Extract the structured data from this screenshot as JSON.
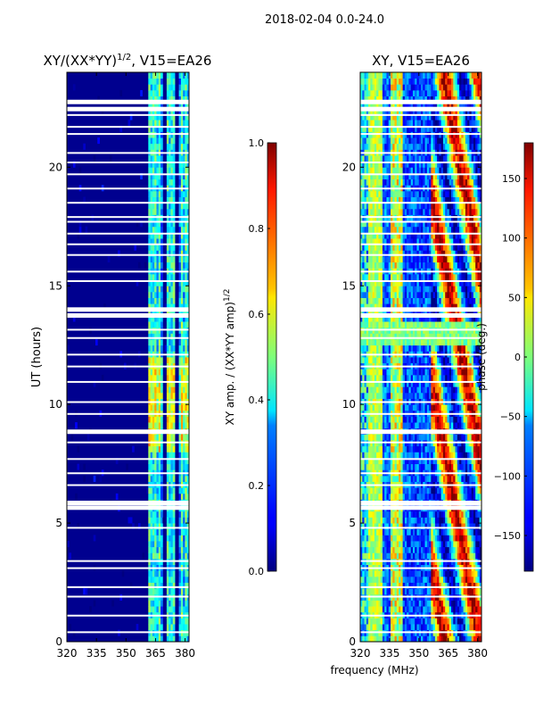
{
  "suptitle": "2018-02-04 0.0-24.0",
  "chart_data": [
    {
      "type": "heatmap",
      "title_main": "XY/(XX*YY)",
      "title_sup": "1/2",
      "title_tail": ", V15=EA26",
      "ylabel": "UT (hours)",
      "xlabel": "",
      "xticks": [
        320,
        335,
        350,
        365,
        380
      ],
      "yticks": [
        0,
        5,
        10,
        15,
        20
      ],
      "xlim": [
        320,
        382
      ],
      "ylim": [
        0,
        24
      ],
      "colorscale": "jet",
      "colorbar": {
        "label_main": "XY amp. / (XX*YY amp)",
        "label_sup": "1/2",
        "ticks": [
          "0.0",
          "0.2",
          "0.4",
          "0.6",
          "0.8",
          "1.0"
        ],
        "tick_values": [
          0,
          0.2,
          0.4,
          0.6,
          0.8,
          1.0
        ],
        "range": [
          0,
          1
        ]
      }
    },
    {
      "type": "heatmap",
      "title": "XY, V15=EA26",
      "ylabel": "",
      "xlabel": "frequency (MHz)",
      "xticks": [
        320,
        335,
        350,
        365,
        380
      ],
      "yticks": [
        0,
        5,
        10,
        15,
        20
      ],
      "xlim": [
        320,
        382
      ],
      "ylim": [
        0,
        24
      ],
      "colorscale": "jet",
      "colorbar": {
        "label": "phase (deg.)",
        "ticks": [
          "150",
          "100",
          "50",
          "0",
          "−50",
          "−100",
          "−150"
        ],
        "tick_values": [
          150,
          100,
          50,
          0,
          -50,
          -100,
          -150
        ],
        "range": [
          -180,
          180
        ]
      }
    }
  ],
  "flagged_hours": [
    0.4,
    1.1,
    1.9,
    2.3,
    3.1,
    3.4,
    4.8,
    5.65,
    5.85,
    6.6,
    7.1,
    7.7,
    8.4,
    8.85,
    9.6,
    10.1,
    10.95,
    11.6,
    12.1,
    12.8,
    13.15,
    13.75,
    14.0,
    15.2,
    15.6,
    16.3,
    16.75,
    17.2,
    17.7,
    17.9,
    18.5,
    19.1,
    19.7,
    20.2,
    20.6,
    21.4,
    21.7,
    22.2,
    22.45,
    22.75
  ]
}
